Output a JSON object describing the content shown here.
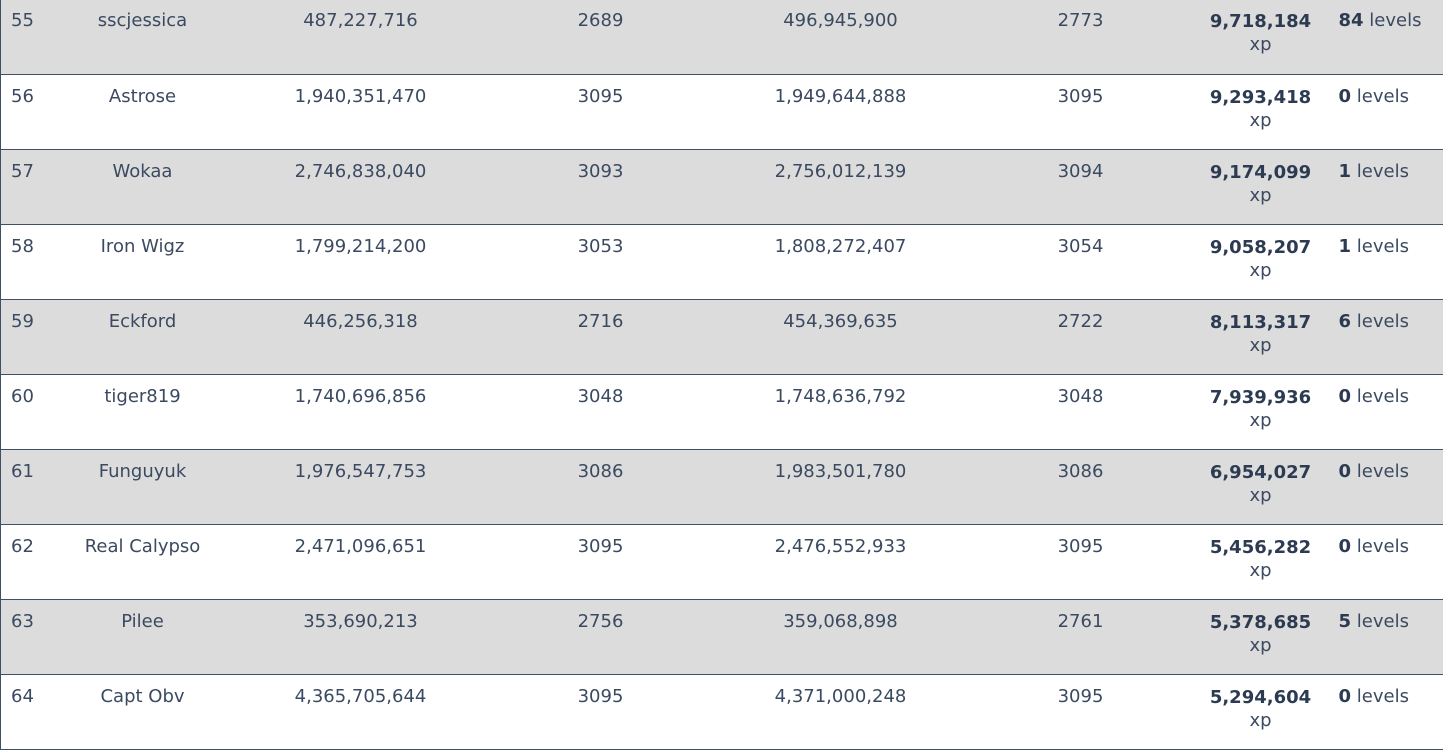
{
  "leaderboard": {
    "rows": [
      {
        "rank": "55",
        "name": "sscjessica",
        "start_xp": "487,227,716",
        "start_level": "2689",
        "end_xp": "496,945,900",
        "end_level": "2773",
        "gained": "9,718,184",
        "gained_unit": "xp",
        "levels_gained": "84",
        "levels_unit": "levels"
      },
      {
        "rank": "56",
        "name": "Astrose",
        "start_xp": "1,940,351,470",
        "start_level": "3095",
        "end_xp": "1,949,644,888",
        "end_level": "3095",
        "gained": "9,293,418",
        "gained_unit": "xp",
        "levels_gained": "0",
        "levels_unit": "levels"
      },
      {
        "rank": "57",
        "name": "Wokaa",
        "start_xp": "2,746,838,040",
        "start_level": "3093",
        "end_xp": "2,756,012,139",
        "end_level": "3094",
        "gained": "9,174,099",
        "gained_unit": "xp",
        "levels_gained": "1",
        "levels_unit": "levels"
      },
      {
        "rank": "58",
        "name": "Iron Wigz",
        "start_xp": "1,799,214,200",
        "start_level": "3053",
        "end_xp": "1,808,272,407",
        "end_level": "3054",
        "gained": "9,058,207",
        "gained_unit": "xp",
        "levels_gained": "1",
        "levels_unit": "levels"
      },
      {
        "rank": "59",
        "name": "Eckford",
        "start_xp": "446,256,318",
        "start_level": "2716",
        "end_xp": "454,369,635",
        "end_level": "2722",
        "gained": "8,113,317",
        "gained_unit": "xp",
        "levels_gained": "6",
        "levels_unit": "levels"
      },
      {
        "rank": "60",
        "name": "tiger819",
        "start_xp": "1,740,696,856",
        "start_level": "3048",
        "end_xp": "1,748,636,792",
        "end_level": "3048",
        "gained": "7,939,936",
        "gained_unit": "xp",
        "levels_gained": "0",
        "levels_unit": "levels"
      },
      {
        "rank": "61",
        "name": "Funguyuk",
        "start_xp": "1,976,547,753",
        "start_level": "3086",
        "end_xp": "1,983,501,780",
        "end_level": "3086",
        "gained": "6,954,027",
        "gained_unit": "xp",
        "levels_gained": "0",
        "levels_unit": "levels"
      },
      {
        "rank": "62",
        "name": "Real Calypso",
        "start_xp": "2,471,096,651",
        "start_level": "3095",
        "end_xp": "2,476,552,933",
        "end_level": "3095",
        "gained": "5,456,282",
        "gained_unit": "xp",
        "levels_gained": "0",
        "levels_unit": "levels"
      },
      {
        "rank": "63",
        "name": "Pilee",
        "start_xp": "353,690,213",
        "start_level": "2756",
        "end_xp": "359,068,898",
        "end_level": "2761",
        "gained": "5,378,685",
        "gained_unit": "xp",
        "levels_gained": "5",
        "levels_unit": "levels"
      },
      {
        "rank": "64",
        "name": "Capt Obv",
        "start_xp": "4,365,705,644",
        "start_level": "3095",
        "end_xp": "4,371,000,248",
        "end_level": "3095",
        "gained": "5,294,604",
        "gained_unit": "xp",
        "levels_gained": "0",
        "levels_unit": "levels"
      }
    ]
  },
  "colors": {
    "row_shaded": "#dcdcdc",
    "row_plain": "#ffffff",
    "border": "#3f4f66",
    "text": "#3b4a60"
  }
}
